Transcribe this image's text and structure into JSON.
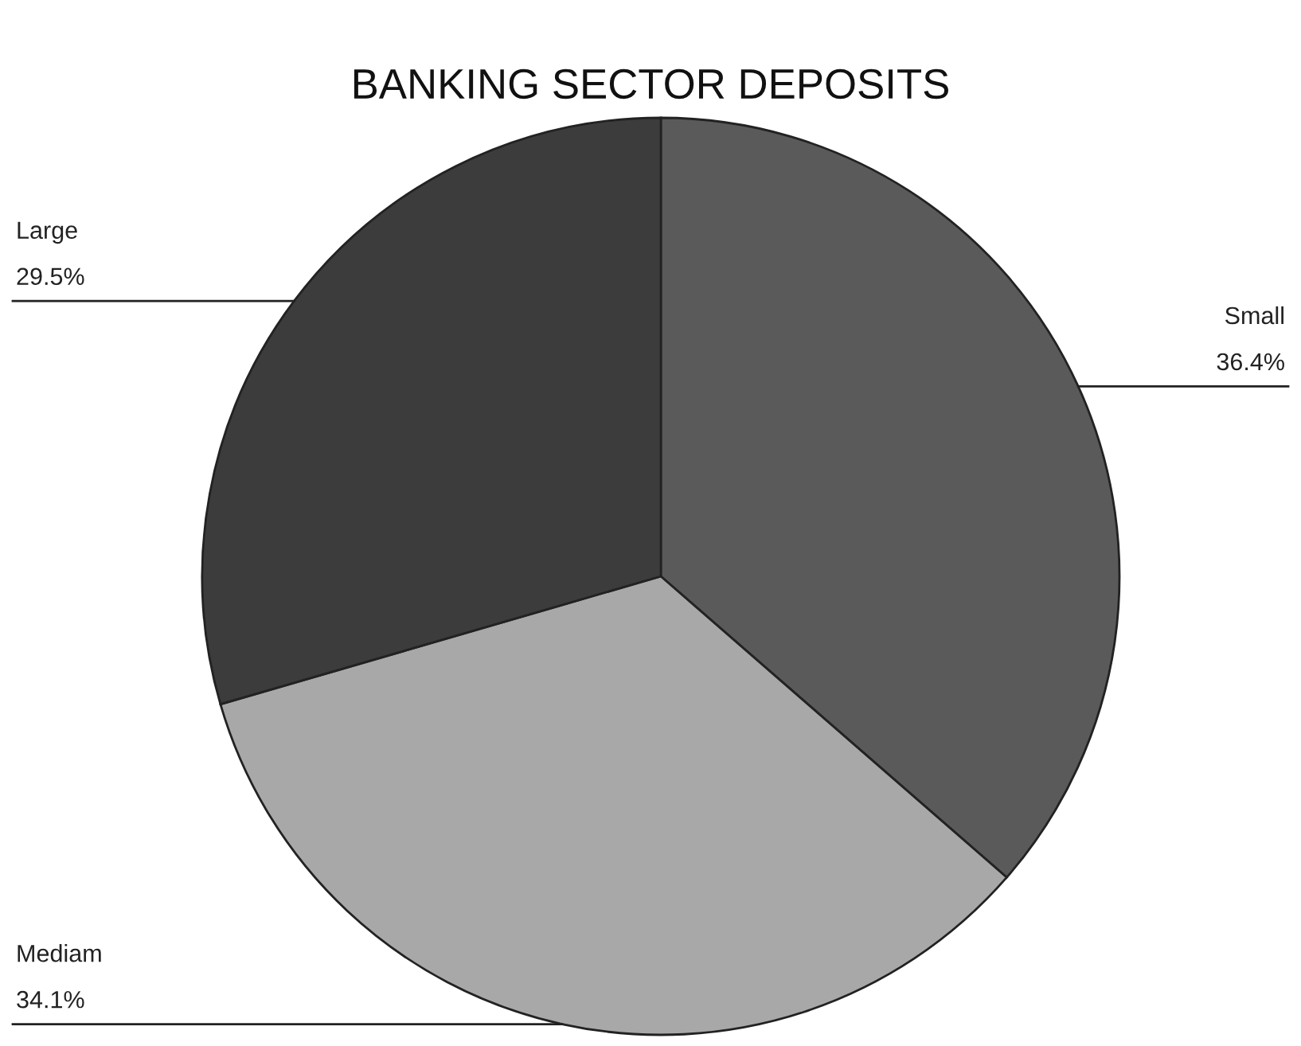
{
  "chart_data": {
    "type": "pie",
    "title": "BANKING SECTOR DEPOSITS",
    "categories": [
      "Small",
      "Mediam",
      "Large"
    ],
    "values": [
      36.4,
      34.1,
      29.5
    ],
    "value_labels": [
      "36.4%",
      "34.1%",
      "29.5%"
    ],
    "colors": [
      "#5a5a5a",
      "#a8a8a8",
      "#3c3c3c"
    ],
    "legend": false
  }
}
